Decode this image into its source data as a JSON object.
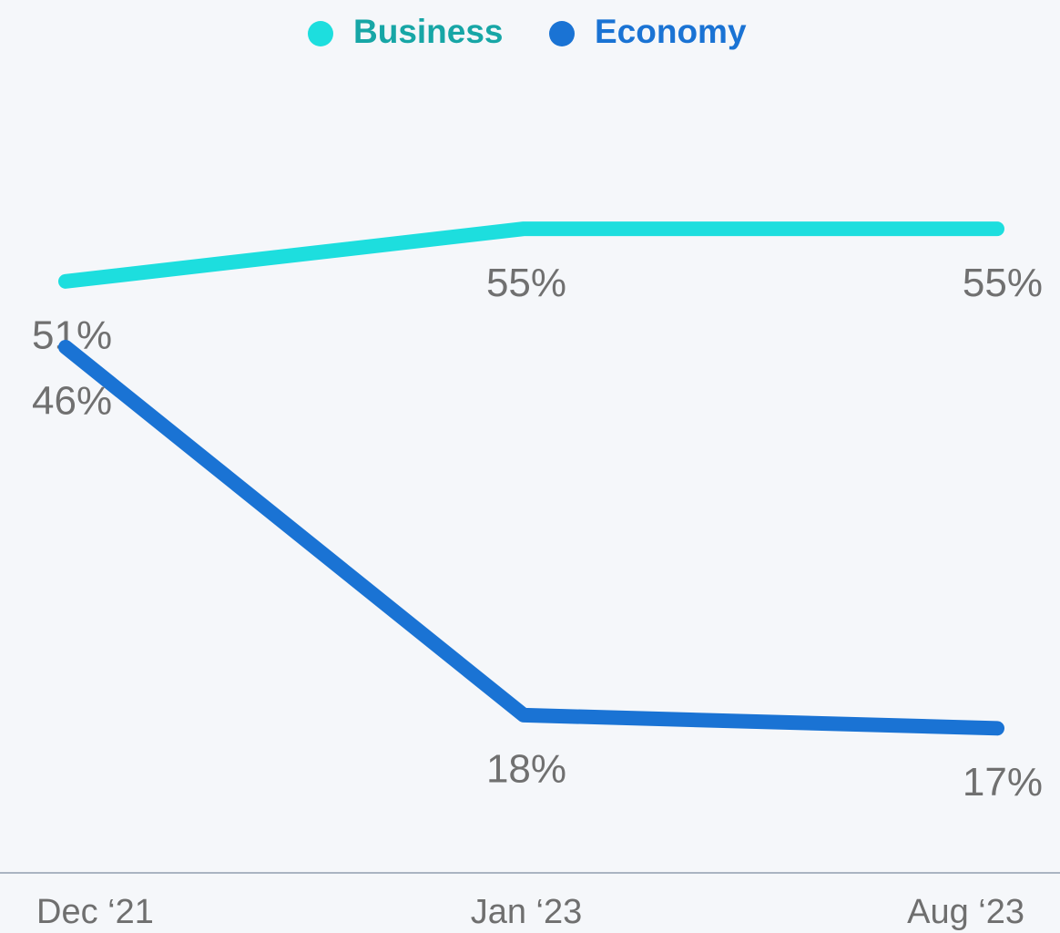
{
  "chart_data": {
    "type": "line",
    "categories": [
      "Dec ‘21",
      "Jan ‘23",
      "Aug ‘23"
    ],
    "series": [
      {
        "name": "Business",
        "color": "#1ddede",
        "values": [
          51,
          55,
          55
        ],
        "value_labels": [
          "51%",
          "55%",
          "55%"
        ]
      },
      {
        "name": "Economy",
        "color": "#1a73d4",
        "values": [
          46,
          18,
          17
        ],
        "value_labels": [
          "46%",
          "18%",
          "17%"
        ]
      }
    ],
    "ylim": [
      6,
      60
    ]
  }
}
